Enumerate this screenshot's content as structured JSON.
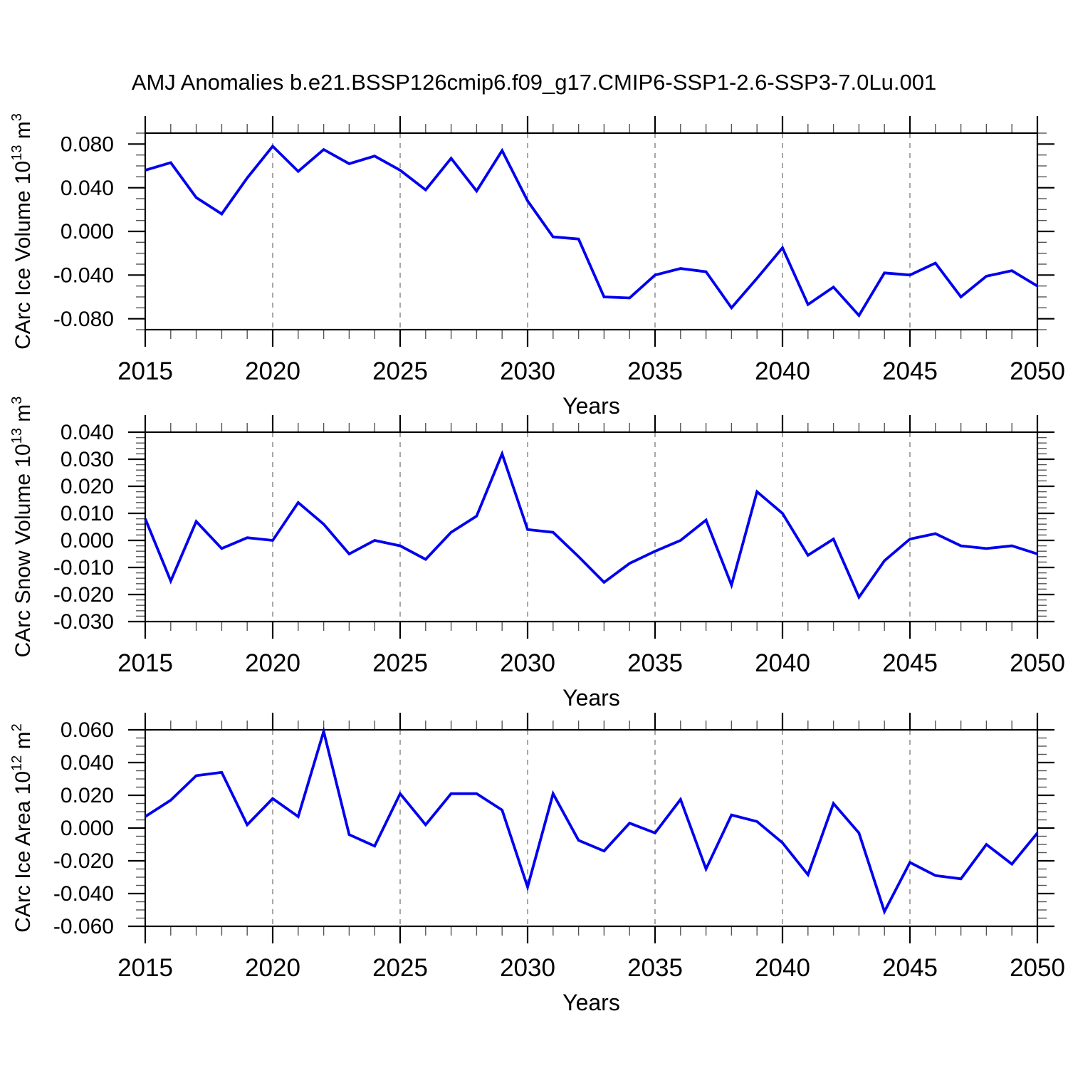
{
  "figure": {
    "background": "#ffffff",
    "text_color": "#000000",
    "line_color": "#0000ee",
    "axis_color": "#000000",
    "minor_tick_color": "#555555",
    "gridline_color": "#7a7a7a"
  },
  "x_axis": {
    "label": "Years",
    "xlim": [
      2015,
      2050
    ],
    "tick_labels": [
      "2015",
      "2020",
      "2025",
      "2030",
      "2035",
      "2040",
      "2045",
      "2050"
    ],
    "tick_values": [
      2015,
      2020,
      2025,
      2030,
      2035,
      2040,
      2045,
      2050
    ],
    "minor_step": 1,
    "gridline_years": [
      2020,
      2025,
      2030,
      2035,
      2040,
      2045
    ],
    "gridline_style": "dashed-vertical"
  },
  "chart_data": [
    {
      "type": "line",
      "name": "carc-ice-volume",
      "title": "AMJ Anomalies b.e21.BSSP126cmip6.f09_g17.CMIP6-SSP1-2.6-SSP3-7.0Lu.001",
      "xlabel": "Years",
      "ylabel": "CArc Ice Volume 10^13 m^3",
      "ylim": [
        -0.09,
        0.09
      ],
      "ytick_values": [
        0.08,
        0.04,
        0.0,
        -0.04,
        -0.08
      ],
      "ytick_labels": [
        "0.080",
        "0.040",
        "0.000",
        "-0.040",
        "-0.080"
      ],
      "y_minor_step": 0.01,
      "legend": "none",
      "x": [
        2015,
        2016,
        2017,
        2018,
        2019,
        2020,
        2021,
        2022,
        2023,
        2024,
        2025,
        2026,
        2027,
        2028,
        2029,
        2030,
        2031,
        2032,
        2033,
        2034,
        2035,
        2036,
        2037,
        2038,
        2039,
        2040,
        2041,
        2042,
        2043,
        2044,
        2045,
        2046,
        2047,
        2048,
        2049,
        2050
      ],
      "values": [
        0.056,
        0.063,
        0.031,
        0.016,
        0.049,
        0.078,
        0.055,
        0.075,
        0.062,
        0.069,
        0.056,
        0.038,
        0.067,
        0.037,
        0.074,
        0.028,
        -0.005,
        -0.007,
        -0.06,
        -0.061,
        -0.04,
        -0.034,
        -0.037,
        -0.07,
        -0.043,
        -0.015,
        -0.067,
        -0.051,
        -0.077,
        -0.038,
        -0.04,
        -0.029,
        -0.06,
        -0.041,
        -0.036,
        -0.05
      ]
    },
    {
      "type": "line",
      "name": "carc-snow-volume",
      "title": "",
      "xlabel": "Years",
      "ylabel": "CArc Snow Volume 10^13 m^3",
      "ylim": [
        -0.03,
        0.04
      ],
      "ytick_values": [
        0.04,
        0.03,
        0.02,
        0.01,
        0.0,
        -0.01,
        -0.02,
        -0.03
      ],
      "ytick_labels": [
        "0.040",
        "0.030",
        "0.020",
        "0.010",
        "0.000",
        "-0.010",
        "-0.020",
        "-0.030"
      ],
      "y_minor_step": 0.002,
      "legend": "none",
      "x": [
        2015,
        2016,
        2017,
        2018,
        2019,
        2020,
        2021,
        2022,
        2023,
        2024,
        2025,
        2026,
        2027,
        2028,
        2029,
        2030,
        2031,
        2032,
        2033,
        2034,
        2035,
        2036,
        2037,
        2038,
        2039,
        2040,
        2041,
        2042,
        2043,
        2044,
        2045,
        2046,
        2047,
        2048,
        2049,
        2050
      ],
      "values": [
        0.008,
        -0.015,
        0.007,
        -0.003,
        0.001,
        0.0,
        0.014,
        0.006,
        -0.005,
        0.0,
        -0.002,
        -0.007,
        0.003,
        0.009,
        0.032,
        0.004,
        0.003,
        -0.006,
        -0.0155,
        -0.0085,
        -0.004,
        0.0,
        0.0075,
        -0.0165,
        0.018,
        0.01,
        -0.0055,
        0.0005,
        -0.021,
        -0.0075,
        0.0005,
        0.0025,
        -0.002,
        -0.003,
        -0.002,
        -0.005
      ]
    },
    {
      "type": "line",
      "name": "carc-ice-area",
      "title": "",
      "xlabel": "Years",
      "ylabel": "CArc Ice Area 10^12 m^2",
      "ylim": [
        -0.06,
        0.06
      ],
      "ytick_values": [
        0.06,
        0.04,
        0.02,
        0.0,
        -0.02,
        -0.04,
        -0.06
      ],
      "ytick_labels": [
        "0.060",
        "0.040",
        "0.020",
        "0.000",
        "-0.020",
        "-0.040",
        "-0.060"
      ],
      "y_minor_step": 0.005,
      "legend": "none",
      "x": [
        2015,
        2016,
        2017,
        2018,
        2019,
        2020,
        2021,
        2022,
        2023,
        2024,
        2025,
        2026,
        2027,
        2028,
        2029,
        2030,
        2031,
        2032,
        2033,
        2034,
        2035,
        2036,
        2037,
        2038,
        2039,
        2040,
        2041,
        2042,
        2043,
        2044,
        2045,
        2046,
        2047,
        2048,
        2049,
        2050
      ],
      "values": [
        0.007,
        0.017,
        0.032,
        0.034,
        0.002,
        0.018,
        0.007,
        0.059,
        -0.004,
        -0.011,
        0.021,
        0.002,
        0.021,
        0.021,
        0.011,
        -0.036,
        0.021,
        -0.0075,
        -0.014,
        0.003,
        -0.003,
        0.0175,
        -0.025,
        0.008,
        0.004,
        -0.009,
        -0.0285,
        0.015,
        -0.003,
        -0.051,
        -0.021,
        -0.029,
        -0.031,
        -0.01,
        -0.022,
        -0.003
      ]
    }
  ]
}
